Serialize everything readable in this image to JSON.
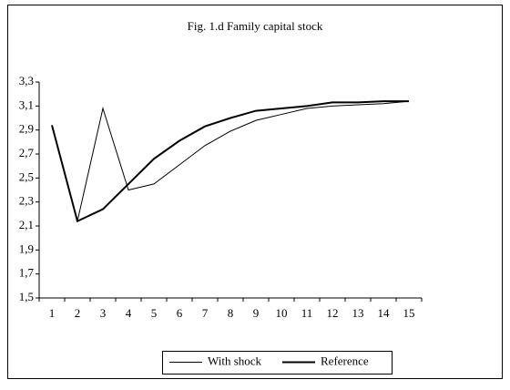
{
  "chart_data": {
    "type": "line",
    "title": "Fig. 1.d Family capital stock",
    "categories": [
      "1",
      "2",
      "3",
      "4",
      "5",
      "6",
      "7",
      "8",
      "9",
      "10",
      "11",
      "12",
      "13",
      "14",
      "15"
    ],
    "series": [
      {
        "name": "With shock",
        "color": "#000000",
        "values": [
          2.94,
          2.14,
          3.08,
          2.4,
          2.45,
          2.61,
          2.77,
          2.89,
          2.98,
          3.03,
          3.08,
          3.1,
          3.11,
          3.12,
          3.14
        ]
      },
      {
        "name": "Reference",
        "color": "#000000",
        "values": [
          2.94,
          2.14,
          2.24,
          2.45,
          2.66,
          2.81,
          2.93,
          3.0,
          3.06,
          3.08,
          3.1,
          3.13,
          3.13,
          3.14,
          3.14
        ]
      }
    ],
    "ylim": [
      1.5,
      3.3
    ],
    "yticks": [
      {
        "value": 1.5,
        "label": "1,5"
      },
      {
        "value": 1.7,
        "label": "1,7"
      },
      {
        "value": 1.9,
        "label": "1,9"
      },
      {
        "value": 2.1,
        "label": "2,1"
      },
      {
        "value": 2.3,
        "label": "2,3"
      },
      {
        "value": 2.5,
        "label": "2,5"
      },
      {
        "value": 2.7,
        "label": "2,7"
      },
      {
        "value": 2.9,
        "label": "2,9"
      },
      {
        "value": 3.1,
        "label": "3,1"
      },
      {
        "value": 3.3,
        "label": "3,3"
      }
    ],
    "legend": "bottom"
  }
}
